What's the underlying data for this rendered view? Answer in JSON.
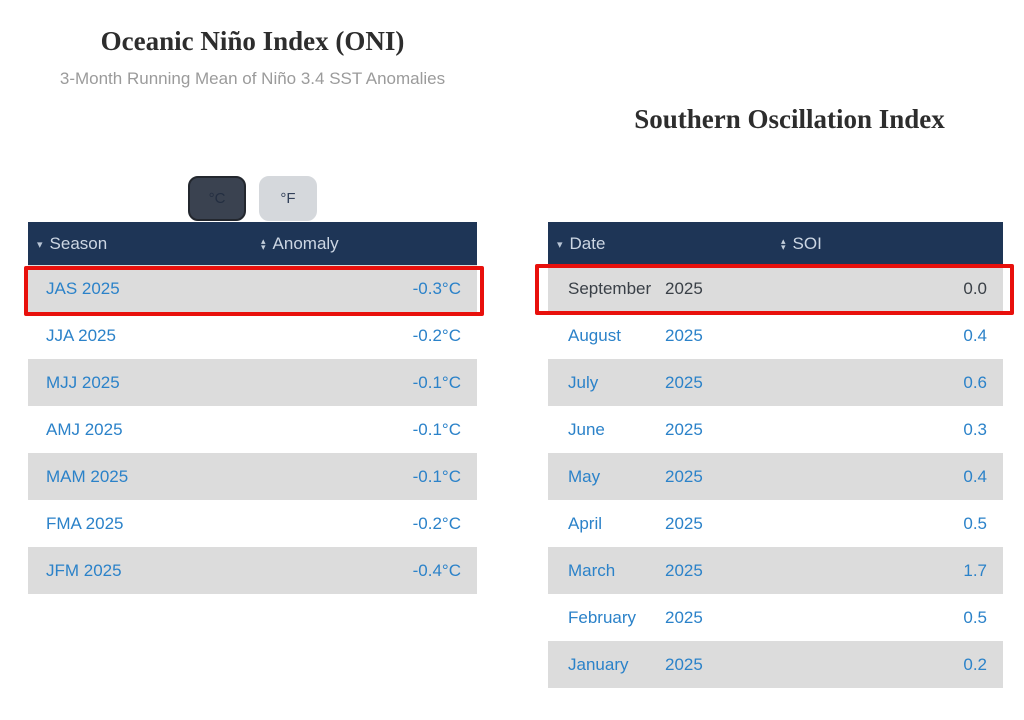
{
  "oni": {
    "title": "Oceanic Niño Index (ONI)",
    "subtitle": "3-Month Running Mean of Niño 3.4 SST Anomalies",
    "unit_toggle": {
      "celsius_label": "°C",
      "fahrenheit_label": "°F",
      "active": "°C"
    },
    "table": {
      "columns": [
        {
          "label": "Season",
          "sort": "desc"
        },
        {
          "label": "Anomaly",
          "sort": "none"
        }
      ],
      "rows": [
        {
          "season": "JAS 2025",
          "anomaly": "-0.3°C",
          "highlighted": true
        },
        {
          "season": "JJA 2025",
          "anomaly": "-0.2°C"
        },
        {
          "season": "MJJ 2025",
          "anomaly": "-0.1°C"
        },
        {
          "season": "AMJ 2025",
          "anomaly": "-0.1°C"
        },
        {
          "season": "MAM 2025",
          "anomaly": "-0.1°C"
        },
        {
          "season": "FMA 2025",
          "anomaly": "-0.2°C"
        },
        {
          "season": "JFM 2025",
          "anomaly": "-0.4°C"
        }
      ]
    }
  },
  "soi": {
    "title": "Southern Oscillation Index",
    "table": {
      "columns": [
        {
          "label": "Date",
          "sort": "desc"
        },
        {
          "label": "SOI",
          "sort": "none"
        }
      ],
      "rows": [
        {
          "month": "September",
          "year": "2025",
          "soi": "0.0",
          "highlighted": true,
          "current": true
        },
        {
          "month": "August",
          "year": "2025",
          "soi": "0.4"
        },
        {
          "month": "July",
          "year": "2025",
          "soi": "0.6"
        },
        {
          "month": "June",
          "year": "2025",
          "soi": "0.3"
        },
        {
          "month": "May",
          "year": "2025",
          "soi": "0.4"
        },
        {
          "month": "April",
          "year": "2025",
          "soi": "0.5"
        },
        {
          "month": "March",
          "year": "2025",
          "soi": "1.7"
        },
        {
          "month": "February",
          "year": "2025",
          "soi": "0.5"
        },
        {
          "month": "January",
          "year": "2025",
          "soi": "0.2"
        }
      ]
    }
  },
  "icons": {
    "sort_desc": "▾",
    "sort_up": "▴",
    "sort_down": "▾"
  },
  "colors": {
    "header_navy": "#1e3556",
    "link_blue": "#2b82c9",
    "row_stripe_gray": "#dcdcdc",
    "highlight_red": "#e8100c",
    "active_button_bg": "#3a4250",
    "inactive_button_bg": "#d5d8dc",
    "subtitle_gray": "#9b9b9b",
    "current_row_text": "#3a4047"
  }
}
